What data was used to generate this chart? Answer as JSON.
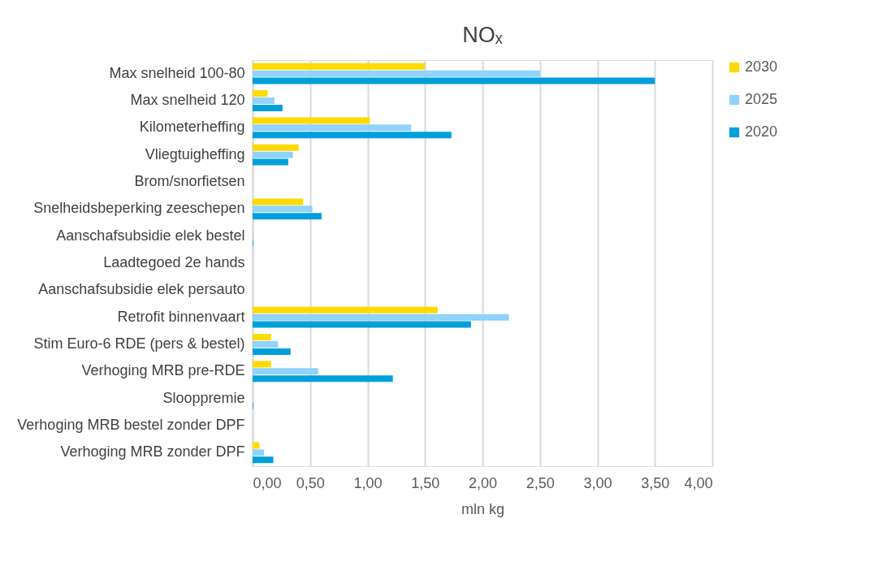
{
  "chart_data": {
    "type": "bar",
    "orientation": "horizontal",
    "title": "NOₓ",
    "xlabel": "mln kg",
    "categories": [
      "Max snelheid 100-80",
      "Max snelheid 120",
      "Kilometerheffing",
      "Vliegtuigheffing",
      "Brom/snorfietsen",
      "Snelheidsbeperking zeeschepen",
      "Aanschafsubsidie elek bestel",
      "Laadtegoed 2e hands",
      "Aanschafsubsidie elek persauto",
      "Retrofit binnenvaart",
      "Stim Euro-6 RDE (pers & bestel)",
      "Verhoging MRB pre-RDE",
      "Slooppremie",
      "Verhoging MRB bestel zonder DPF",
      "Verhoging MRB zonder DPF"
    ],
    "series": [
      {
        "name": "2030",
        "color": "#ffda00",
        "values": [
          1.5,
          0.13,
          1.02,
          0.4,
          0,
          0.44,
          0,
          0,
          0,
          1.61,
          0.16,
          0.16,
          0,
          0,
          0.06
        ]
      },
      {
        "name": "2025",
        "color": "#8fd3fe",
        "values": [
          2.5,
          0.19,
          1.38,
          0.35,
          0,
          0.52,
          0.005,
          0,
          0,
          2.23,
          0.22,
          0.57,
          0,
          0,
          0.1
        ]
      },
      {
        "name": "2020",
        "color": "#009fda",
        "values": [
          3.5,
          0.26,
          1.73,
          0.31,
          0,
          0.6,
          0.005,
          0,
          0,
          1.9,
          0.33,
          1.22,
          0.005,
          0,
          0.18
        ]
      }
    ],
    "xlim": [
      0,
      4
    ],
    "xticks": [
      {
        "value": 0,
        "label": "0,00"
      },
      {
        "value": 0.5,
        "label": "0,50"
      },
      {
        "value": 1,
        "label": "1,00"
      },
      {
        "value": 1.5,
        "label": "1,50"
      },
      {
        "value": 2,
        "label": "2,00"
      },
      {
        "value": 2.5,
        "label": "2,50"
      },
      {
        "value": 3,
        "label": "3,00"
      },
      {
        "value": 3.5,
        "label": "3,50"
      },
      {
        "value": 4,
        "label": "4,00"
      }
    ],
    "grid": "x",
    "legend": "right"
  }
}
